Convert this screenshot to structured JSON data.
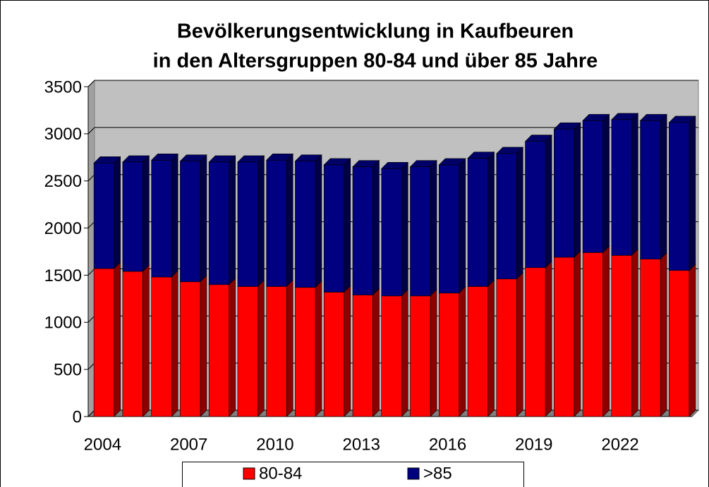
{
  "chart_data": {
    "type": "bar",
    "stacked": true,
    "title": [
      "Bevölkerungsentwicklung in Kaufbeuren",
      "in den Altersgruppen 80-84 und über 85 Jahre"
    ],
    "categories": [
      "2004",
      null,
      null,
      "2007",
      null,
      null,
      "2010",
      null,
      null,
      "2013",
      null,
      null,
      "2016",
      null,
      null,
      "2019",
      null,
      null,
      "2022",
      null,
      null
    ],
    "series": [
      {
        "name": "80-84",
        "color": "#ff0000",
        "values": [
          1570,
          1540,
          1480,
          1430,
          1400,
          1380,
          1380,
          1370,
          1320,
          1290,
          1280,
          1280,
          1310,
          1380,
          1460,
          1580,
          1690,
          1740,
          1710,
          1670,
          1550
        ]
      },
      {
        "name": ">85",
        "color": "#000080",
        "values": [
          1120,
          1160,
          1240,
          1280,
          1300,
          1320,
          1340,
          1340,
          1350,
          1360,
          1350,
          1370,
          1360,
          1360,
          1330,
          1340,
          1360,
          1400,
          1440,
          1470,
          1570
        ]
      }
    ],
    "ylim": [
      0,
      3500
    ],
    "yticks": [
      0,
      500,
      1000,
      1500,
      2000,
      2500,
      3000,
      3500
    ],
    "grid": true,
    "legend": "bottom"
  }
}
